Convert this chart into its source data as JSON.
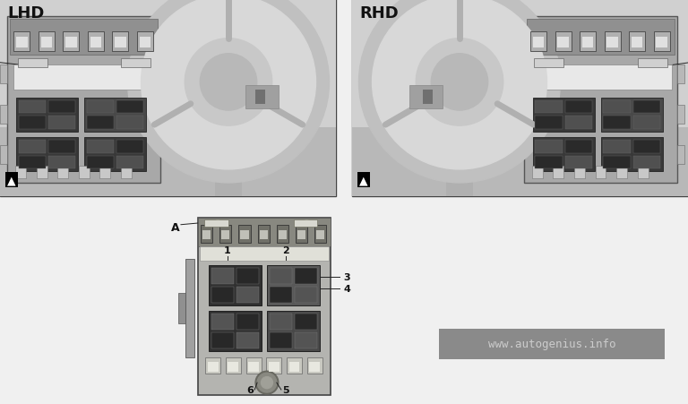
{
  "bg_color": "#f0f0f0",
  "top_left_label": "LHD",
  "top_right_label": "RHD",
  "watermark_text": "www.autogenius.info",
  "watermark_bg": "#8a8a8a",
  "watermark_text_color": "#cccccc",
  "label_A": "A",
  "arrow_symbol": "▲",
  "photo_bg": "#c8c8c8",
  "photo_border": "#444444",
  "dash_bg": "#b0b0b0",
  "dash_dark": "#787878",
  "dash_mid": "#909090",
  "dash_light": "#d0d0d0",
  "wheel_outer": "#c0c0c0",
  "wheel_inner": "#d8d8d8",
  "wheel_hub": "#b8b8b8",
  "fuse_panel_bg": "#a8a8a8",
  "fuse_panel_top": "#888888",
  "fuse_block_dark": "#383838",
  "fuse_block_mid": "#585858",
  "fuse_block_light": "#d8d8d8",
  "connector_bg": "#909090",
  "diag_bg": "#b4b4b0",
  "diag_border": "#444444",
  "diag_top_bg": "#888880",
  "diag_conn_bg": "#707068",
  "diag_relay_dark": "#303030",
  "diag_relay_mid": "#585858",
  "diag_relay_light": "#c8c8c0",
  "diag_fuse_bg": "#d0d0c8",
  "line_color": "#222222",
  "text_color": "#111111",
  "white": "#ffffff"
}
